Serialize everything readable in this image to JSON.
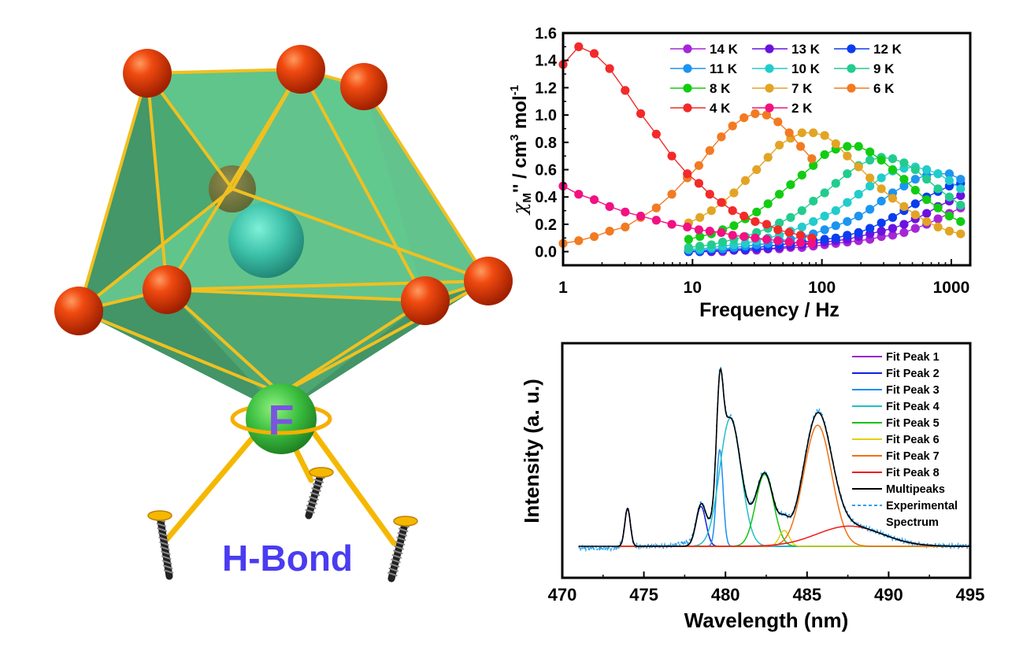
{
  "illustration": {
    "atom_label": "F",
    "caption": "H-Bond",
    "caption_color": "#4a3cf0",
    "atom_label_color": "#7a55e0",
    "vertex_color": "#e8400e",
    "center_color": "#3cc0a8",
    "fluorine_color": "#3cc040",
    "edge_color": "#f0c020",
    "face_color": "#3cb070"
  },
  "chart_data": [
    {
      "type": "scatter",
      "variant": "line-with-markers",
      "title": "",
      "xlabel": "Frequency / Hz",
      "ylabel": {
        "chi": "χ",
        "sub": "M",
        "mid": "'' / cm",
        "sup1": "3",
        "mid2": " mol",
        "sup2": "-1"
      },
      "x_scale": "log",
      "xlim": [
        1,
        1400
      ],
      "ylim": [
        -0.1,
        1.6
      ],
      "xticks": [
        1,
        10,
        100,
        1000
      ],
      "xtick_labels": [
        "1",
        "10",
        "100",
        "1000"
      ],
      "yticks": [
        0.0,
        0.2,
        0.4,
        0.6,
        0.8,
        1.0,
        1.2,
        1.4,
        1.6
      ],
      "ytick_labels": [
        "0.0",
        "0.2",
        "0.4",
        "0.6",
        "0.8",
        "1.0",
        "1.2",
        "1.4",
        "1.6"
      ],
      "grid": false,
      "legend_position": "top-right",
      "freq_low": [
        1,
        1.32,
        1.74,
        2.29,
        3.02,
        3.98,
        5.25,
        6.92,
        9.12,
        11.2,
        13.6,
        16.7,
        20.4,
        25.0,
        30.5,
        37.4,
        45.7,
        55.9,
        68.4,
        83.6
      ],
      "freq_high": [
        9.33,
        11.4,
        14.0,
        17.1,
        20.9,
        25.6,
        31.3,
        38.3,
        46.9,
        57.3,
        70.1,
        85.8,
        105,
        128,
        157,
        192,
        235,
        288,
        352,
        431,
        527,
        645,
        789,
        965,
        1180
      ],
      "series": [
        {
          "name": "14 K",
          "color": "#a626d6",
          "x": "freq_high",
          "values": [
            0.0,
            0.0,
            0.0,
            0.0,
            0.01,
            0.01,
            0.01,
            0.02,
            0.02,
            0.03,
            0.03,
            0.04,
            0.05,
            0.06,
            0.07,
            0.08,
            0.09,
            0.11,
            0.12,
            0.14,
            0.17,
            0.2,
            0.24,
            0.28,
            0.32
          ]
        },
        {
          "name": "13 K",
          "color": "#6a12e0",
          "x": "freq_high",
          "values": [
            0.0,
            0.0,
            0.0,
            0.01,
            0.01,
            0.01,
            0.02,
            0.02,
            0.03,
            0.04,
            0.05,
            0.06,
            0.07,
            0.08,
            0.09,
            0.11,
            0.13,
            0.15,
            0.17,
            0.2,
            0.24,
            0.28,
            0.33,
            0.37,
            0.41
          ]
        },
        {
          "name": "12 K",
          "color": "#0a3cf0",
          "x": "freq_high",
          "values": [
            0.0,
            0.0,
            0.01,
            0.01,
            0.02,
            0.02,
            0.03,
            0.04,
            0.05,
            0.06,
            0.07,
            0.08,
            0.09,
            0.1,
            0.12,
            0.14,
            0.17,
            0.21,
            0.25,
            0.3,
            0.35,
            0.4,
            0.44,
            0.48,
            0.5
          ]
        },
        {
          "name": "11 K",
          "color": "#1c94f0",
          "x": "freq_high",
          "values": [
            0.01,
            0.01,
            0.02,
            0.02,
            0.03,
            0.04,
            0.05,
            0.06,
            0.08,
            0.09,
            0.11,
            0.13,
            0.16,
            0.19,
            0.22,
            0.26,
            0.31,
            0.37,
            0.43,
            0.48,
            0.53,
            0.56,
            0.57,
            0.57,
            0.53
          ]
        },
        {
          "name": "10 K",
          "color": "#22cccc",
          "x": "freq_high",
          "values": [
            0.02,
            0.02,
            0.03,
            0.04,
            0.05,
            0.06,
            0.08,
            0.1,
            0.12,
            0.15,
            0.18,
            0.22,
            0.26,
            0.3,
            0.36,
            0.42,
            0.48,
            0.54,
            0.59,
            0.61,
            0.62,
            0.6,
            0.57,
            0.52,
            0.46
          ]
        },
        {
          "name": "9 K",
          "color": "#22cc8e",
          "x": "freq_high",
          "values": [
            0.03,
            0.04,
            0.05,
            0.07,
            0.09,
            0.11,
            0.14,
            0.17,
            0.21,
            0.25,
            0.3,
            0.37,
            0.43,
            0.5,
            0.57,
            0.63,
            0.67,
            0.69,
            0.68,
            0.65,
            0.6,
            0.53,
            0.46,
            0.4,
            0.34
          ]
        },
        {
          "name": "8 K",
          "color": "#12cc12",
          "x": "freq_high",
          "values": [
            0.09,
            0.11,
            0.13,
            0.16,
            0.19,
            0.24,
            0.29,
            0.35,
            0.42,
            0.49,
            0.56,
            0.63,
            0.71,
            0.75,
            0.77,
            0.77,
            0.73,
            0.67,
            0.6,
            0.53,
            0.45,
            0.38,
            0.32,
            0.26,
            0.22
          ]
        },
        {
          "name": "7 K",
          "color": "#e2a424",
          "x": "freq_high",
          "values": [
            0.21,
            0.25,
            0.3,
            0.36,
            0.43,
            0.52,
            0.6,
            0.69,
            0.78,
            0.83,
            0.87,
            0.87,
            0.85,
            0.79,
            0.7,
            0.62,
            0.54,
            0.46,
            0.39,
            0.33,
            0.27,
            0.22,
            0.18,
            0.15,
            0.13
          ]
        },
        {
          "name": "6 K",
          "color": "#f27a22",
          "x": "freq_low",
          "values": [
            0.06,
            0.08,
            0.11,
            0.15,
            0.18,
            0.25,
            0.32,
            0.42,
            0.54,
            0.63,
            0.74,
            0.84,
            0.92,
            0.98,
            1.01,
            1.0,
            0.95,
            0.87,
            0.77,
            0.68
          ]
        },
        {
          "name": "4 K",
          "color": "#f22a2a",
          "x": "freq_low",
          "values": [
            1.37,
            1.5,
            1.45,
            1.34,
            1.18,
            1.01,
            0.86,
            0.7,
            0.57,
            0.5,
            0.42,
            0.36,
            0.3,
            0.26,
            0.22,
            0.2,
            0.16,
            0.14,
            0.12,
            0.1
          ]
        },
        {
          "name": "2 K",
          "color": "#f21082",
          "x": "freq_low",
          "values": [
            0.48,
            0.42,
            0.38,
            0.33,
            0.29,
            0.26,
            0.23,
            0.2,
            0.18,
            0.16,
            0.15,
            0.14,
            0.12,
            0.11,
            0.1,
            0.09,
            0.08,
            0.07,
            0.065,
            0.06
          ]
        }
      ],
      "legend_order": [
        "14 K",
        "13 K",
        "12 K",
        "11 K",
        "10 K",
        "9 K",
        "8 K",
        "7 K",
        "6 K",
        "4 K",
        "2 K"
      ]
    },
    {
      "type": "line",
      "title": "",
      "xlabel": "Wavelength (nm)",
      "ylabel": "Intensity (a. u.)",
      "xlim": [
        470,
        495
      ],
      "ylim": [
        -0.18,
        1.18
      ],
      "xticks": [
        470,
        475,
        480,
        485,
        490,
        495
      ],
      "xtick_labels": [
        "470",
        "475",
        "480",
        "485",
        "490",
        "495"
      ],
      "grid": false,
      "legend_position": "top-right",
      "fit_range": [
        473.4,
        495
      ],
      "data_range": [
        471,
        495
      ],
      "peaks": [
        {
          "name": "Fit Peak 1",
          "color": "#9a22d0",
          "center": 474.0,
          "amplitude": 0.215,
          "sigma": 0.17
        },
        {
          "name": "Fit Peak 2",
          "color": "#1020e0",
          "center": 478.5,
          "amplitude": 0.227,
          "sigma": 0.3
        },
        {
          "name": "Fit Peak 3",
          "color": "#1a8ef0",
          "center": 479.65,
          "amplitude": 0.55,
          "sigma": 0.2
        },
        {
          "name": "Fit Peak 4",
          "color": "#20c0c8",
          "center": 480.3,
          "amplitude": 0.73,
          "sigma": 0.65
        },
        {
          "name": "Fit Peak 5",
          "color": "#18c018",
          "center": 482.4,
          "amplitude": 0.41,
          "sigma": 0.55
        },
        {
          "name": "Fit Peak 6",
          "color": "#e0d010",
          "center": 483.6,
          "amplitude": 0.09,
          "sigma": 0.3
        },
        {
          "name": "Fit Peak 7",
          "color": "#f07010",
          "center": 485.65,
          "amplitude": 0.69,
          "sigma": 0.85
        },
        {
          "name": "Fit Peak 8",
          "color": "#f01818",
          "center": 487.6,
          "amplitude": 0.115,
          "sigma": 2.0
        }
      ],
      "multipeaks": {
        "name": "Multipeaks",
        "color": "#000000"
      },
      "experimental": {
        "name_line1": "Experimental",
        "name_line2": "Spectrum",
        "color": "#2aa0f0"
      }
    }
  ]
}
